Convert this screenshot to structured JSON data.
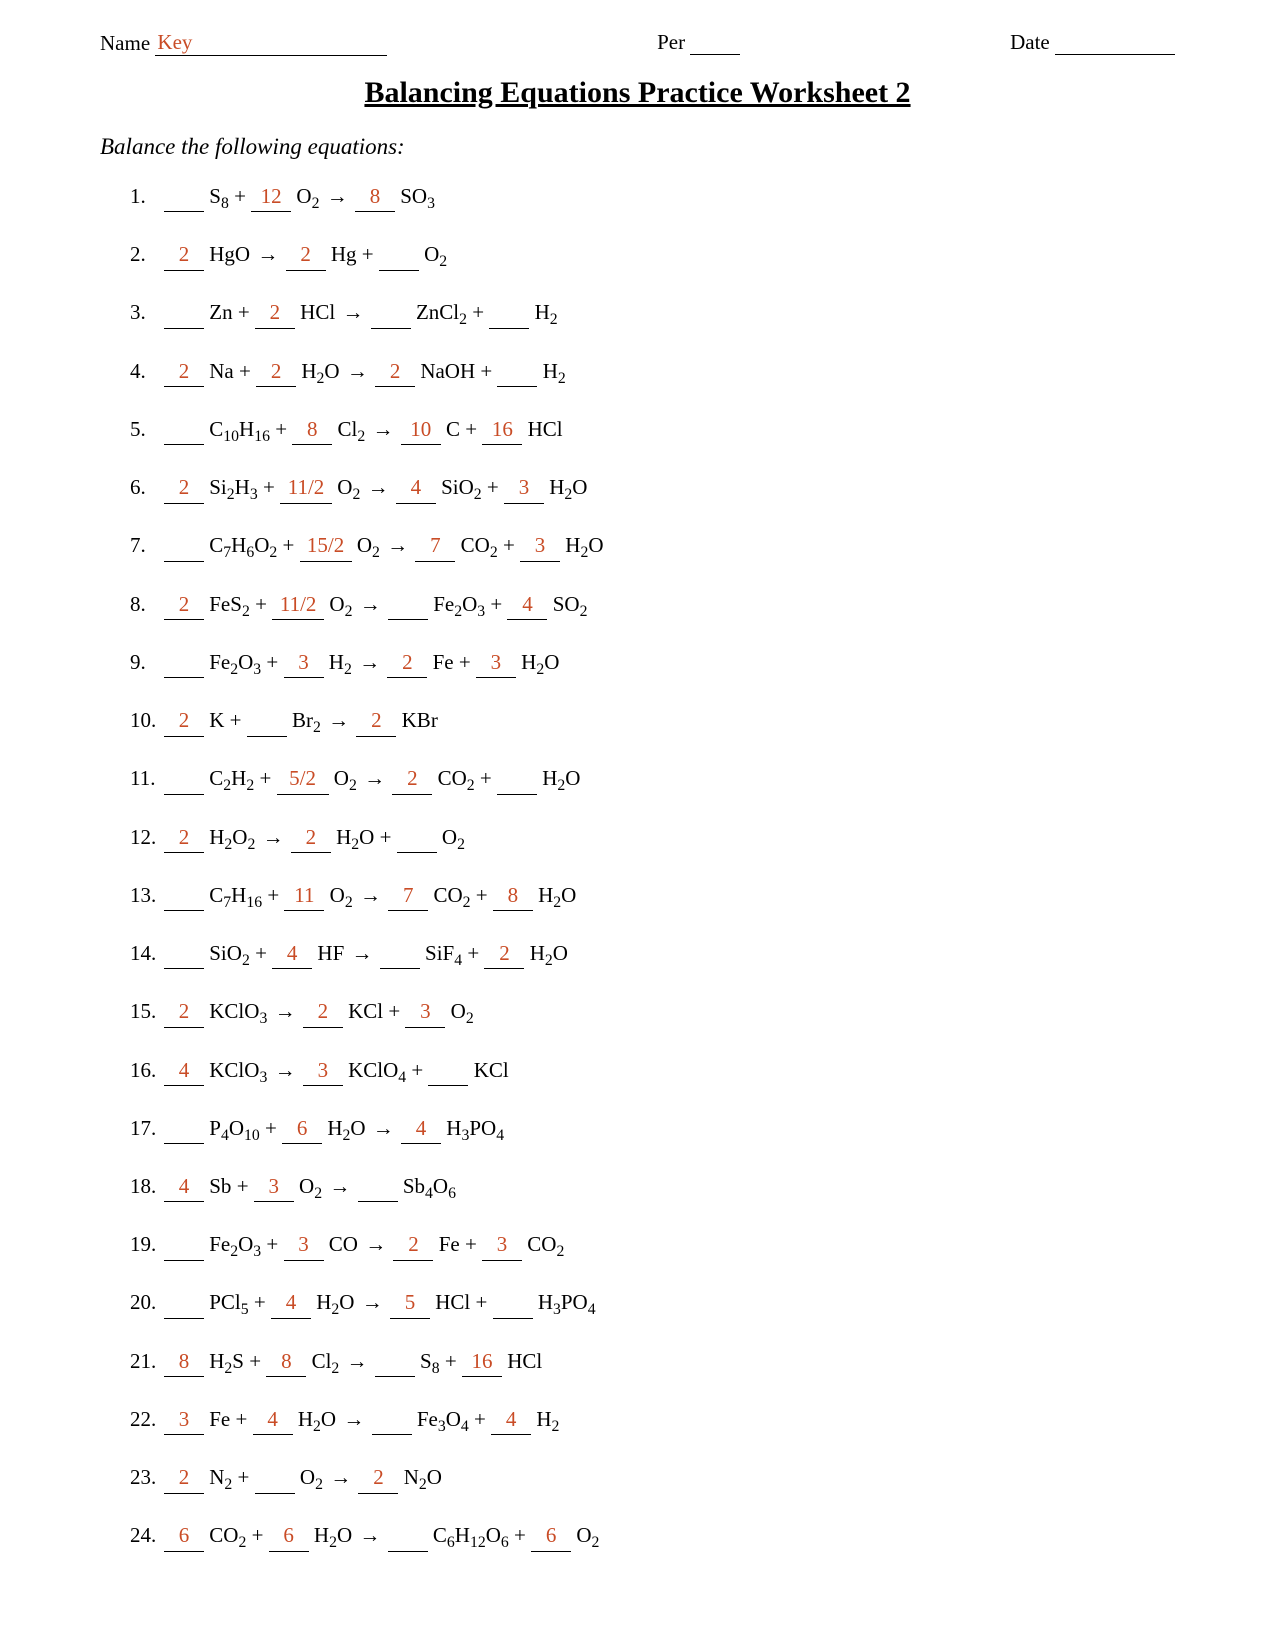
{
  "header": {
    "name_label": "Name",
    "name_value": "Key",
    "per_label": "Per",
    "per_value": "",
    "date_label": "Date",
    "date_value": ""
  },
  "title": "Balancing Equations Practice Worksheet 2",
  "instruction": "Balance the following equations:",
  "colors": {
    "answer": "#c94c26",
    "text": "#000000",
    "bg": "#ffffff"
  },
  "equations": [
    {
      "n": "1.",
      "terms": [
        {
          "c": "",
          "f": "S",
          "s": "8"
        },
        {
          "op": "+"
        },
        {
          "c": "12",
          "f": "O",
          "s": "2"
        },
        {
          "op": "→"
        },
        {
          "c": "8",
          "f": "SO",
          "s": "3"
        }
      ]
    },
    {
      "n": "2.",
      "terms": [
        {
          "c": "2",
          "f": "HgO"
        },
        {
          "op": "→"
        },
        {
          "c": "2",
          "f": "Hg"
        },
        {
          "op": "+"
        },
        {
          "c": "",
          "f": "O",
          "s": "2"
        }
      ]
    },
    {
      "n": "3.",
      "terms": [
        {
          "c": "",
          "f": "Zn"
        },
        {
          "op": "+"
        },
        {
          "c": "2",
          "f": "HCl"
        },
        {
          "op": "→"
        },
        {
          "c": "",
          "f": "ZnCl",
          "s": "2"
        },
        {
          "op": "+"
        },
        {
          "c": "",
          "f": "H",
          "s": "2"
        }
      ]
    },
    {
      "n": "4.",
      "terms": [
        {
          "c": "2",
          "f": "Na"
        },
        {
          "op": "+"
        },
        {
          "c": "2",
          "f": "H",
          "s": "2",
          "f2": "O"
        },
        {
          "op": "→"
        },
        {
          "c": "2",
          "f": "NaOH"
        },
        {
          "op": "+"
        },
        {
          "c": "",
          "f": "H",
          "s": "2"
        }
      ]
    },
    {
      "n": "5.",
      "terms": [
        {
          "c": "",
          "f": "C",
          "s": "10",
          "f2": "H",
          "s2": "16"
        },
        {
          "op": "+"
        },
        {
          "c": "8",
          "f": "Cl",
          "s": "2"
        },
        {
          "op": "→"
        },
        {
          "c": "10",
          "f": "C"
        },
        {
          "op": "+"
        },
        {
          "c": "16",
          "f": "HCl"
        }
      ]
    },
    {
      "n": "6.",
      "terms": [
        {
          "c": "2",
          "f": "Si",
          "s": "2",
          "f2": "H",
          "s2": "3"
        },
        {
          "op": "+"
        },
        {
          "c": "11/2",
          "f": "O",
          "s": "2"
        },
        {
          "op": "→"
        },
        {
          "c": "4",
          "f": "SiO",
          "s": "2"
        },
        {
          "op": "+"
        },
        {
          "c": "3",
          "f": "H",
          "s": "2",
          "f2": "O"
        }
      ]
    },
    {
      "n": "7.",
      "terms": [
        {
          "c": "",
          "f": "C",
          "s": "7",
          "f2": "H",
          "s2": "6",
          "f3": "O",
          "s3": "2"
        },
        {
          "op": "+"
        },
        {
          "c": "15/2",
          "f": "O",
          "s": "2"
        },
        {
          "op": "→"
        },
        {
          "c": "7",
          "f": "CO",
          "s": "2"
        },
        {
          "op": "+"
        },
        {
          "c": "3",
          "f": "H",
          "s": "2",
          "f2": "O"
        }
      ]
    },
    {
      "n": "8.",
      "terms": [
        {
          "c": "2",
          "f": "FeS",
          "s": "2"
        },
        {
          "op": "+"
        },
        {
          "c": "11/2",
          "f": "O",
          "s": "2"
        },
        {
          "op": "→"
        },
        {
          "c": "",
          "f": "Fe",
          "s": "2",
          "f2": "O",
          "s2": "3"
        },
        {
          "op": "+"
        },
        {
          "c": "4",
          "f": "SO",
          "s": "2"
        }
      ]
    },
    {
      "n": "9.",
      "terms": [
        {
          "c": "",
          "f": "Fe",
          "s": "2",
          "f2": "O",
          "s2": "3"
        },
        {
          "op": "+"
        },
        {
          "c": "3",
          "f": "H",
          "s": "2"
        },
        {
          "op": "→"
        },
        {
          "c": "2",
          "f": "Fe"
        },
        {
          "op": "+"
        },
        {
          "c": "3",
          "f": "H",
          "s": "2",
          "f2": "O"
        }
      ]
    },
    {
      "n": "10.",
      "terms": [
        {
          "c": "2",
          "f": "K"
        },
        {
          "op": "+"
        },
        {
          "c": "",
          "f": "Br",
          "s": "2"
        },
        {
          "op": "→"
        },
        {
          "c": "2",
          "f": "KBr"
        }
      ]
    },
    {
      "n": "11.",
      "terms": [
        {
          "c": "",
          "f": "C",
          "s": "2",
          "f2": "H",
          "s2": "2"
        },
        {
          "op": "+"
        },
        {
          "c": "5/2",
          "f": "O",
          "s": "2"
        },
        {
          "op": "→"
        },
        {
          "c": "2",
          "f": "CO",
          "s": "2"
        },
        {
          "op": "+"
        },
        {
          "c": "",
          "f": "H",
          "s": "2",
          "f2": "O"
        }
      ]
    },
    {
      "n": "12.",
      "terms": [
        {
          "c": "2",
          "f": "H",
          "s": "2",
          "f2": "O",
          "s2": "2"
        },
        {
          "op": "→"
        },
        {
          "c": "2",
          "f": "H",
          "s": "2",
          "f2": "O"
        },
        {
          "op": "+"
        },
        {
          "c": "",
          "f": "O",
          "s": "2"
        }
      ]
    },
    {
      "n": "13.",
      "terms": [
        {
          "c": "",
          "f": "C",
          "s": "7",
          "f2": "H",
          "s2": "16"
        },
        {
          "op": "+"
        },
        {
          "c": "11",
          "f": "O",
          "s": "2"
        },
        {
          "op": "→"
        },
        {
          "c": "7",
          "f": "CO",
          "s": "2"
        },
        {
          "op": "+"
        },
        {
          "c": "8",
          "f": "H",
          "s": "2",
          "f2": "O"
        }
      ]
    },
    {
      "n": "14.",
      "terms": [
        {
          "c": "",
          "f": "SiO",
          "s": "2"
        },
        {
          "op": "+"
        },
        {
          "c": "4",
          "f": "HF"
        },
        {
          "op": "→"
        },
        {
          "c": "",
          "f": "SiF",
          "s": "4"
        },
        {
          "op": "+"
        },
        {
          "c": "2",
          "f": "H",
          "s": "2",
          "f2": "O"
        }
      ]
    },
    {
      "n": "15.",
      "terms": [
        {
          "c": "2",
          "f": "KClO",
          "s": "3"
        },
        {
          "op": "→"
        },
        {
          "c": "2",
          "f": "KCl"
        },
        {
          "op": "+"
        },
        {
          "c": "3",
          "f": "O",
          "s": "2"
        }
      ]
    },
    {
      "n": "16.",
      "terms": [
        {
          "c": "4",
          "f": "KClO",
          "s": "3"
        },
        {
          "op": "→"
        },
        {
          "c": "3",
          "f": "KClO",
          "s": "4"
        },
        {
          "op": "+"
        },
        {
          "c": "",
          "f": "KCl"
        }
      ]
    },
    {
      "n": "17.",
      "terms": [
        {
          "c": "",
          "f": "P",
          "s": "4",
          "f2": "O",
          "s2": "10"
        },
        {
          "op": "+"
        },
        {
          "c": "6",
          "f": "H",
          "s": "2",
          "f2": "O"
        },
        {
          "op": "→"
        },
        {
          "c": "4",
          "f": "H",
          "s": "3",
          "f2": "PO",
          "s2": "4"
        }
      ]
    },
    {
      "n": "18.",
      "terms": [
        {
          "c": "4",
          "f": "Sb"
        },
        {
          "op": "+"
        },
        {
          "c": "3",
          "f": "O",
          "s": "2"
        },
        {
          "op": "→"
        },
        {
          "c": "",
          "f": "Sb",
          "s": "4",
          "f2": "O",
          "s2": "6"
        }
      ]
    },
    {
      "n": "19.",
      "terms": [
        {
          "c": "",
          "f": "Fe",
          "s": "2",
          "f2": "O",
          "s2": "3"
        },
        {
          "op": "+"
        },
        {
          "c": "3",
          "f": "CO"
        },
        {
          "op": "→"
        },
        {
          "c": "2",
          "f": "Fe"
        },
        {
          "op": "+"
        },
        {
          "c": "3",
          "f": "CO",
          "s": "2"
        }
      ]
    },
    {
      "n": "20.",
      "terms": [
        {
          "c": "",
          "f": "PCl",
          "s": "5"
        },
        {
          "op": "+"
        },
        {
          "c": "4",
          "f": "H",
          "s": "2",
          "f2": "O"
        },
        {
          "op": "→"
        },
        {
          "c": "5",
          "f": "HCl"
        },
        {
          "op": "+"
        },
        {
          "c": "",
          "f": "H",
          "s": "3",
          "f2": "PO",
          "s2": "4"
        }
      ]
    },
    {
      "n": "21.",
      "terms": [
        {
          "c": "8",
          "f": "H",
          "s": "2",
          "f2": "S"
        },
        {
          "op": "+"
        },
        {
          "c": "8",
          "f": "Cl",
          "s": "2"
        },
        {
          "op": "→"
        },
        {
          "c": "",
          "f": "S",
          "s": "8"
        },
        {
          "op": "+"
        },
        {
          "c": "16",
          "f": "HCl"
        }
      ]
    },
    {
      "n": "22.",
      "terms": [
        {
          "c": "3",
          "f": "Fe"
        },
        {
          "op": "+"
        },
        {
          "c": "4",
          "f": "H",
          "s": "2",
          "f2": "O"
        },
        {
          "op": "→"
        },
        {
          "c": "",
          "f": "Fe",
          "s": "3",
          "f2": "O",
          "s2": "4"
        },
        {
          "op": "+"
        },
        {
          "c": "4",
          "f": "H",
          "s": "2"
        }
      ]
    },
    {
      "n": "23.",
      "terms": [
        {
          "c": "2",
          "f": "N",
          "s": "2"
        },
        {
          "op": "+"
        },
        {
          "c": "",
          "f": "O",
          "s": "2"
        },
        {
          "op": "→"
        },
        {
          "c": "2",
          "f": "N",
          "s": "2",
          "f2": "O"
        }
      ]
    },
    {
      "n": "24.",
      "terms": [
        {
          "c": "6",
          "f": "CO",
          "s": "2"
        },
        {
          "op": "+"
        },
        {
          "c": "6",
          "f": "H",
          "s": "2",
          "f2": "O"
        },
        {
          "op": "→"
        },
        {
          "c": "",
          "f": "C",
          "s": "6",
          "f2": "H",
          "s2": "12",
          "f3": "O",
          "s3": "6"
        },
        {
          "op": "+"
        },
        {
          "c": "6",
          "f": "O",
          "s": "2"
        }
      ]
    }
  ]
}
